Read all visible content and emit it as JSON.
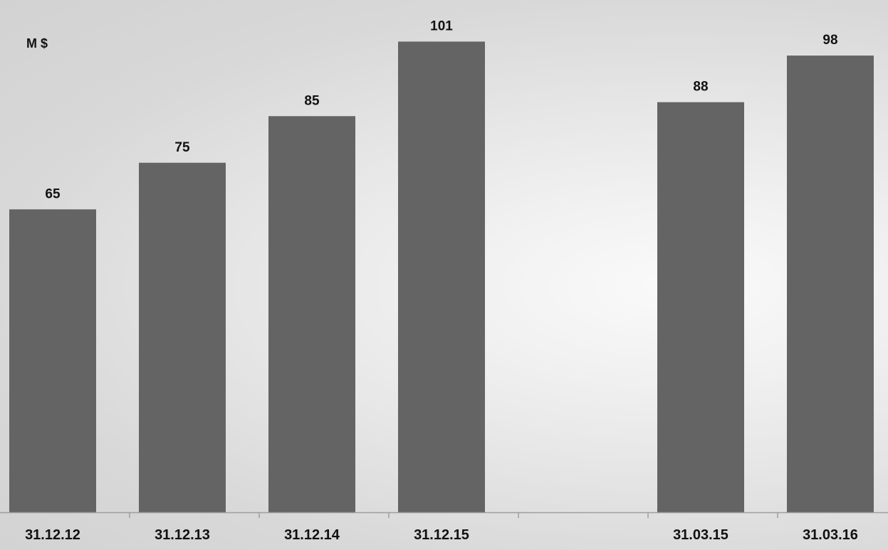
{
  "chart_data": {
    "type": "bar",
    "unit_label": "M $",
    "categories": [
      "31.12.12",
      "31.12.13",
      "31.12.14",
      "31.12.15",
      "",
      "31.03.15",
      "31.03.16"
    ],
    "values": [
      65,
      75,
      85,
      101,
      null,
      88,
      98
    ],
    "ylim": [
      0,
      105
    ],
    "grid": false,
    "legend": "none",
    "colors": {
      "bar": "#646464",
      "axis": "#9e9e9e",
      "text": "#111111"
    }
  }
}
